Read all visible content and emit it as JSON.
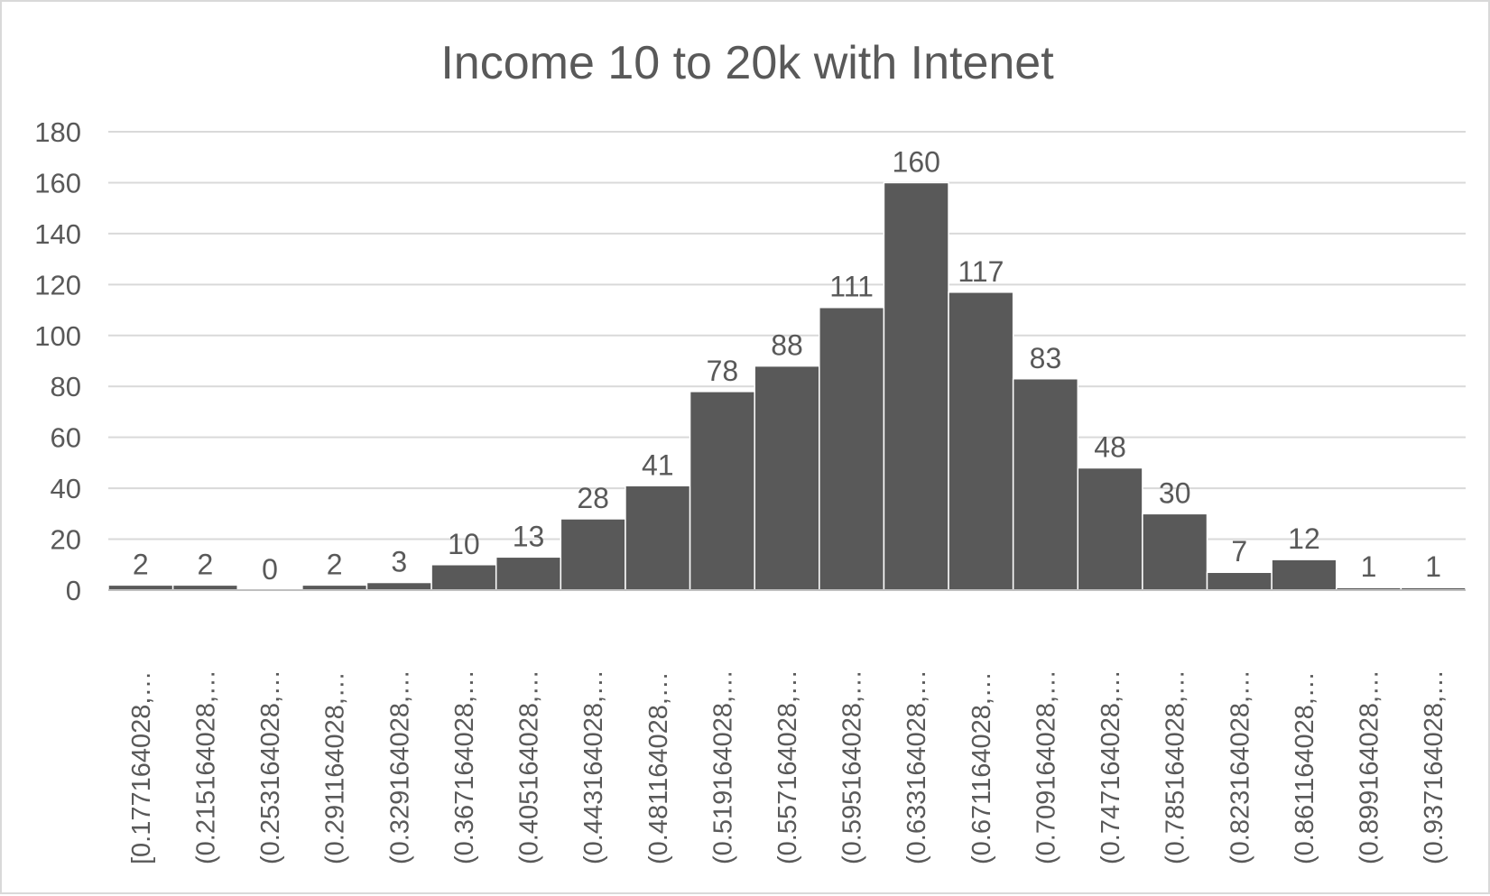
{
  "chart_data": {
    "type": "bar",
    "title": "Income 10 to 20k with Intenet",
    "xlabel": "",
    "ylabel": "",
    "ylim": [
      0,
      180
    ],
    "yticks": [
      0,
      20,
      40,
      60,
      80,
      100,
      120,
      140,
      160,
      180
    ],
    "grid": true,
    "bar_color": "#595959",
    "categories": [
      "[0.177164028,…",
      "(0.215164028,…",
      "(0.253164028,…",
      "(0.291164028,…",
      "(0.329164028,…",
      "(0.367164028,…",
      "(0.405164028,…",
      "(0.443164028,…",
      "(0.481164028,…",
      "(0.519164028,…",
      "(0.557164028,…",
      "(0.595164028,…",
      "(0.633164028,…",
      "(0.671164028,…",
      "(0.709164028,…",
      "(0.747164028,…",
      "(0.785164028,…",
      "(0.823164028,…",
      "(0.861164028,…",
      "(0.899164028,…",
      "(0.937164028,…"
    ],
    "values": [
      2,
      2,
      0,
      2,
      3,
      10,
      13,
      28,
      41,
      78,
      88,
      111,
      160,
      117,
      83,
      48,
      30,
      7,
      12,
      1,
      1
    ]
  }
}
